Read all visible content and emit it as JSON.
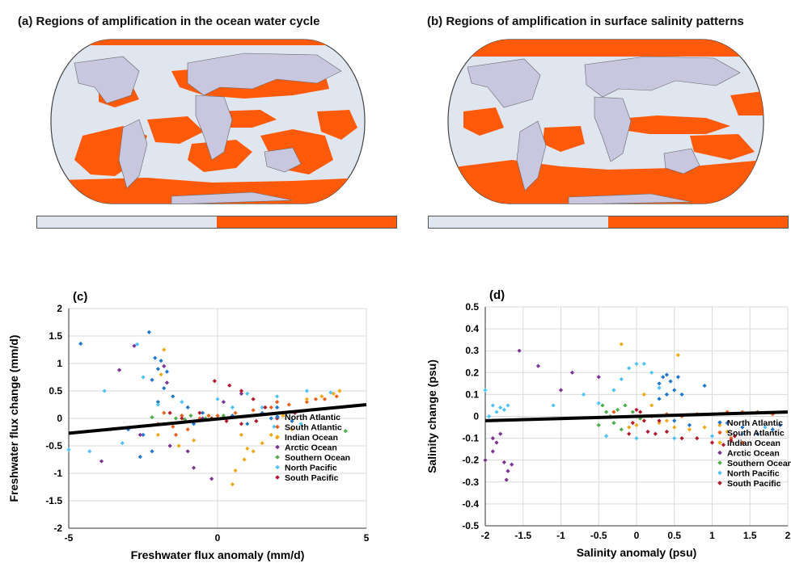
{
  "colors": {
    "land": "#c9c7e0",
    "ocean": "#dfe6f0",
    "amplified": "#ff5a0a",
    "grid": "#d9d9d9",
    "fit_line": "#000000"
  },
  "panel_a": {
    "title": "(a) Regions of amplification in the ocean water cycle"
  },
  "panel_b": {
    "title": "(b) Regions of amplification in surface salinity patterns"
  },
  "chart_data": [
    {
      "type": "scatter",
      "panel_label": "(c)",
      "xlabel": "Freshwater flux anomaly (mm/d)",
      "ylabel": "Freshwater flux change (mm/d)",
      "xlim": [
        -5,
        5
      ],
      "ylim": [
        -2,
        2
      ],
      "x_ticks": [
        -5,
        0,
        5
      ],
      "x_tick_labels": [
        "-5",
        "0",
        "5"
      ],
      "y_ticks": [
        -2,
        -1.5,
        -1,
        -0.5,
        0,
        0.5,
        1,
        1.5,
        2
      ],
      "y_tick_labels": [
        "-2",
        "-1.5",
        "-1",
        "-0.5",
        "0",
        "0.5",
        "1",
        "1.5",
        "2"
      ],
      "grid": true,
      "legend_position": "bottom-right",
      "fit_line": {
        "x": [
          -5,
          5
        ],
        "y": [
          -0.27,
          0.25
        ]
      },
      "series": [
        {
          "name": "North Atlantic",
          "color": "#1f78c8",
          "points": [
            [
              -2.3,
              1.57
            ],
            [
              -2.1,
              1.1
            ],
            [
              -1.9,
              1.05
            ],
            [
              -2.0,
              0.9
            ],
            [
              -1.7,
              0.85
            ],
            [
              -2.2,
              0.7
            ],
            [
              -1.8,
              0.55
            ],
            [
              -1.5,
              0.4
            ],
            [
              -2.0,
              0.3
            ],
            [
              -1.0,
              0.2
            ],
            [
              -0.5,
              0.1
            ],
            [
              0.5,
              0.05
            ],
            [
              1.5,
              0.1
            ],
            [
              2.0,
              0.2
            ],
            [
              2.3,
              0.1
            ],
            [
              -4.6,
              1.36
            ],
            [
              -3.0,
              -0.2
            ],
            [
              -2.5,
              -0.3
            ],
            [
              -2.2,
              -0.6
            ],
            [
              -2.6,
              -0.7
            ],
            [
              -0.8,
              -0.1
            ],
            [
              1.0,
              -0.1
            ],
            [
              2.5,
              -0.05
            ],
            [
              1.8,
              0.0
            ],
            [
              -1.2,
              0.05
            ]
          ]
        },
        {
          "name": "South Atlantic",
          "color": "#e8601c",
          "points": [
            [
              -1.8,
              0.1
            ],
            [
              -1.2,
              0.05
            ],
            [
              -0.6,
              0.0
            ],
            [
              0.0,
              0.05
            ],
            [
              0.6,
              0.1
            ],
            [
              1.2,
              0.15
            ],
            [
              1.8,
              0.2
            ],
            [
              2.4,
              0.25
            ],
            [
              3.0,
              0.3
            ],
            [
              3.6,
              0.35
            ],
            [
              4.0,
              0.4
            ],
            [
              -2.0,
              -0.1
            ],
            [
              -1.5,
              -0.15
            ],
            [
              -1.0,
              -0.2
            ],
            [
              -1.4,
              -0.3
            ],
            [
              -0.3,
              0.05
            ],
            [
              2.0,
              0.3
            ],
            [
              3.3,
              0.35
            ]
          ]
        },
        {
          "name": "Indian Ocean",
          "color": "#f0a818",
          "points": [
            [
              -1.8,
              1.25
            ],
            [
              -1.9,
              0.8
            ],
            [
              -2.0,
              -0.3
            ],
            [
              -1.3,
              -0.5
            ],
            [
              -0.8,
              -0.4
            ],
            [
              0.8,
              -0.3
            ],
            [
              1.2,
              -0.6
            ],
            [
              1.5,
              -0.45
            ],
            [
              2.0,
              -0.35
            ],
            [
              2.5,
              -0.2
            ],
            [
              3.0,
              0.35
            ],
            [
              3.5,
              0.4
            ],
            [
              3.9,
              0.45
            ],
            [
              4.1,
              0.5
            ],
            [
              0.9,
              -0.75
            ],
            [
              0.6,
              -0.95
            ],
            [
              0.5,
              -1.2
            ],
            [
              1.0,
              -0.55
            ],
            [
              1.8,
              -0.3
            ],
            [
              2.2,
              0.05
            ]
          ]
        },
        {
          "name": "Arctic Ocean",
          "color": "#7b3294",
          "points": [
            [
              -2.8,
              1.32
            ],
            [
              -3.3,
              0.88
            ],
            [
              -3.9,
              -0.78
            ],
            [
              -1.8,
              0.95
            ],
            [
              -1.7,
              0.65
            ],
            [
              -0.8,
              -0.9
            ],
            [
              -0.2,
              -1.1
            ],
            [
              -1.0,
              -0.6
            ],
            [
              -1.6,
              -0.5
            ],
            [
              -2.6,
              -0.3
            ],
            [
              -0.5,
              0.0
            ],
            [
              0.2,
              0.3
            ],
            [
              0.8,
              0.45
            ]
          ]
        },
        {
          "name": "Southern Ocean",
          "color": "#4daf4a",
          "points": [
            [
              -1.8,
              -0.1
            ],
            [
              -1.4,
              0.0
            ],
            [
              -0.9,
              0.05
            ],
            [
              -0.4,
              0.0
            ],
            [
              0.2,
              0.05
            ],
            [
              4.3,
              -0.23
            ],
            [
              -2.2,
              0.02
            ],
            [
              -1.1,
              -0.02
            ]
          ]
        },
        {
          "name": "North Pacific",
          "color": "#4fc3f7",
          "points": [
            [
              -2.7,
              1.35
            ],
            [
              -2.5,
              0.75
            ],
            [
              -3.8,
              0.5
            ],
            [
              -5.0,
              -0.57
            ],
            [
              -4.3,
              -0.6
            ],
            [
              -3.2,
              -0.45
            ],
            [
              -1.2,
              0.3
            ],
            [
              0.0,
              0.35
            ],
            [
              1.0,
              0.45
            ],
            [
              2.0,
              0.4
            ],
            [
              3.0,
              0.5
            ],
            [
              3.8,
              0.47
            ],
            [
              -2.0,
              0.25
            ],
            [
              1.5,
              0.2
            ],
            [
              -3.6,
              -0.2
            ],
            [
              2.8,
              -0.1
            ],
            [
              1.9,
              -0.15
            ],
            [
              0.5,
              0.2
            ]
          ]
        },
        {
          "name": "South Pacific",
          "color": "#b2182b",
          "points": [
            [
              -0.1,
              0.68
            ],
            [
              0.4,
              0.6
            ],
            [
              0.8,
              0.5
            ],
            [
              1.2,
              0.35
            ],
            [
              1.6,
              0.2
            ],
            [
              -0.6,
              0.1
            ],
            [
              -0.2,
              0.0
            ],
            [
              0.3,
              -0.05
            ],
            [
              0.8,
              -0.1
            ],
            [
              1.3,
              -0.05
            ],
            [
              -1.2,
              0.0
            ],
            [
              -1.6,
              0.1
            ],
            [
              2.0,
              0.0
            ],
            [
              2.6,
              0.1
            ]
          ]
        }
      ]
    },
    {
      "type": "scatter",
      "panel_label": "(d)",
      "xlabel": "Salinity anomaly (psu)",
      "ylabel": "Salinity change (psu)",
      "xlim": [
        -2,
        2
      ],
      "ylim": [
        -0.5,
        0.5
      ],
      "x_ticks": [
        -2,
        -1.5,
        -1,
        -0.5,
        0,
        0.5,
        1,
        1.5,
        2
      ],
      "x_tick_labels": [
        "-2",
        "-1.5",
        "-1",
        "-0.5",
        "0",
        "0.5",
        "1",
        "1.5",
        "2"
      ],
      "y_ticks": [
        -0.5,
        -0.4,
        -0.3,
        -0.2,
        -0.1,
        0,
        0.1,
        0.2,
        0.3,
        0.4,
        0.5
      ],
      "y_tick_labels": [
        "-0.5",
        "-0.4",
        "-0.3",
        "-0.2",
        "-0.1",
        "0",
        "0.1",
        "0.2",
        "0.3",
        "0.4",
        "0.5"
      ],
      "grid": true,
      "legend_position": "bottom-right",
      "fit_line": {
        "x": [
          -2,
          2
        ],
        "y": [
          -0.02,
          0.02
        ]
      },
      "series": [
        {
          "name": "North Atlantic",
          "color": "#1f78c8",
          "points": [
            [
              0.3,
              0.15
            ],
            [
              0.35,
              0.18
            ],
            [
              0.4,
              0.19
            ],
            [
              0.45,
              0.16
            ],
            [
              0.5,
              0.12
            ],
            [
              0.55,
              0.18
            ],
            [
              0.6,
              0.1
            ],
            [
              0.4,
              0.1
            ],
            [
              0.3,
              0.08
            ],
            [
              0.9,
              0.14
            ],
            [
              1.2,
              -0.03
            ],
            [
              1.4,
              -0.05
            ],
            [
              1.6,
              -0.08
            ],
            [
              1.8,
              -0.06
            ],
            [
              1.9,
              -0.04
            ],
            [
              0.5,
              -0.02
            ],
            [
              0.7,
              -0.04
            ]
          ]
        },
        {
          "name": "South Atlantic",
          "color": "#e8601c",
          "points": [
            [
              0.2,
              0.0
            ],
            [
              0.4,
              0.01
            ],
            [
              0.6,
              0.0
            ],
            [
              0.8,
              0.01
            ],
            [
              1.0,
              0.01
            ],
            [
              1.2,
              0.02
            ],
            [
              1.4,
              0.02
            ],
            [
              1.6,
              0.02
            ],
            [
              1.8,
              0.01
            ],
            [
              1.95,
              0.02
            ],
            [
              1.25,
              -0.1
            ],
            [
              1.4,
              -0.12
            ],
            [
              -0.3,
              0.02
            ],
            [
              0.0,
              0.0
            ]
          ]
        },
        {
          "name": "Indian Ocean",
          "color": "#f0a818",
          "points": [
            [
              -0.2,
              0.33
            ],
            [
              0.55,
              0.28
            ],
            [
              0.1,
              0.1
            ],
            [
              0.2,
              0.05
            ],
            [
              0.3,
              -0.03
            ],
            [
              0.5,
              -0.05
            ],
            [
              0.7,
              -0.06
            ],
            [
              0.9,
              -0.05
            ],
            [
              1.1,
              -0.04
            ],
            [
              1.2,
              -0.07
            ],
            [
              0.4,
              -0.02
            ],
            [
              0.0,
              -0.04
            ],
            [
              -0.1,
              -0.05
            ]
          ]
        },
        {
          "name": "Arctic Ocean",
          "color": "#7b3294",
          "points": [
            [
              -1.55,
              0.3
            ],
            [
              -1.8,
              -0.08
            ],
            [
              -1.85,
              -0.12
            ],
            [
              -1.9,
              -0.16
            ],
            [
              -1.75,
              -0.21
            ],
            [
              -1.7,
              -0.25
            ],
            [
              -1.72,
              -0.29
            ],
            [
              -1.65,
              -0.22
            ],
            [
              -2.0,
              -0.2
            ],
            [
              -1.9,
              -0.1
            ],
            [
              -1.3,
              0.23
            ],
            [
              -0.85,
              0.2
            ],
            [
              -0.5,
              0.18
            ],
            [
              -1.0,
              0.12
            ]
          ]
        },
        {
          "name": "Southern Ocean",
          "color": "#4daf4a",
          "points": [
            [
              -0.45,
              0.05
            ],
            [
              -0.4,
              0.02
            ],
            [
              -0.35,
              0.0
            ],
            [
              -0.3,
              -0.03
            ],
            [
              -0.25,
              0.03
            ],
            [
              -0.15,
              0.05
            ],
            [
              -0.05,
              0.02
            ],
            [
              0.05,
              -0.01
            ],
            [
              -0.5,
              -0.04
            ],
            [
              -0.2,
              -0.06
            ]
          ]
        },
        {
          "name": "North Pacific",
          "color": "#4fc3f7",
          "points": [
            [
              -2.0,
              0.12
            ],
            [
              -1.9,
              0.05
            ],
            [
              -1.85,
              0.02
            ],
            [
              -1.8,
              0.04
            ],
            [
              -1.75,
              0.03
            ],
            [
              -1.7,
              0.05
            ],
            [
              -1.95,
              0.0
            ],
            [
              -1.1,
              0.05
            ],
            [
              -0.7,
              0.1
            ],
            [
              -0.3,
              0.12
            ],
            [
              -0.2,
              0.17
            ],
            [
              -0.1,
              0.22
            ],
            [
              0.0,
              0.24
            ],
            [
              0.1,
              0.24
            ],
            [
              0.2,
              0.2
            ],
            [
              0.3,
              0.13
            ],
            [
              -0.5,
              0.06
            ],
            [
              -0.4,
              -0.09
            ],
            [
              0.0,
              -0.1
            ],
            [
              0.5,
              -0.1
            ],
            [
              1.0,
              -0.09
            ],
            [
              1.4,
              -0.08
            ],
            [
              1.7,
              -0.05
            ]
          ]
        },
        {
          "name": "South Pacific",
          "color": "#b2182b",
          "points": [
            [
              -0.1,
              -0.08
            ],
            [
              -0.05,
              -0.03
            ],
            [
              0.0,
              0.03
            ],
            [
              0.05,
              0.02
            ],
            [
              0.1,
              -0.02
            ],
            [
              0.15,
              -0.07
            ],
            [
              0.25,
              -0.08
            ],
            [
              0.4,
              -0.07
            ],
            [
              0.6,
              -0.1
            ],
            [
              0.8,
              -0.1
            ],
            [
              1.0,
              -0.12
            ],
            [
              1.15,
              -0.13
            ],
            [
              1.25,
              -0.11
            ],
            [
              1.3,
              -0.09
            ],
            [
              0.3,
              -0.02
            ]
          ]
        }
      ]
    }
  ]
}
